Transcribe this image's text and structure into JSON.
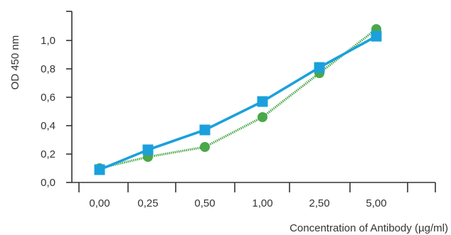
{
  "chart_data": {
    "type": "line",
    "title": "",
    "xlabel": "Concentration of Antibody (µg/ml)",
    "ylabel": "OD 450 nm",
    "categories": [
      "0,00",
      "0,25",
      "0,50",
      "1,00",
      "2,50",
      "5,00"
    ],
    "yticks": [
      {
        "value": 0.0,
        "label": "0,0"
      },
      {
        "value": 0.2,
        "label": "0,2"
      },
      {
        "value": 0.4,
        "label": "0,4"
      },
      {
        "value": 0.6,
        "label": "0,6"
      },
      {
        "value": 0.8,
        "label": "0,8"
      },
      {
        "value": 1.0,
        "label": "1,0"
      }
    ],
    "ylim": [
      0,
      1.2
    ],
    "grid": false,
    "legend": "none",
    "series": [
      {
        "marker": "circle",
        "line_style": "dotted",
        "color": "#4aa84a",
        "values": [
          0.1,
          0.18,
          0.25,
          0.46,
          0.77,
          1.08
        ]
      },
      {
        "marker": "square",
        "line_style": "solid",
        "color": "#1ba0dc",
        "values": [
          0.09,
          0.23,
          0.37,
          0.57,
          0.81,
          1.03
        ]
      }
    ]
  }
}
